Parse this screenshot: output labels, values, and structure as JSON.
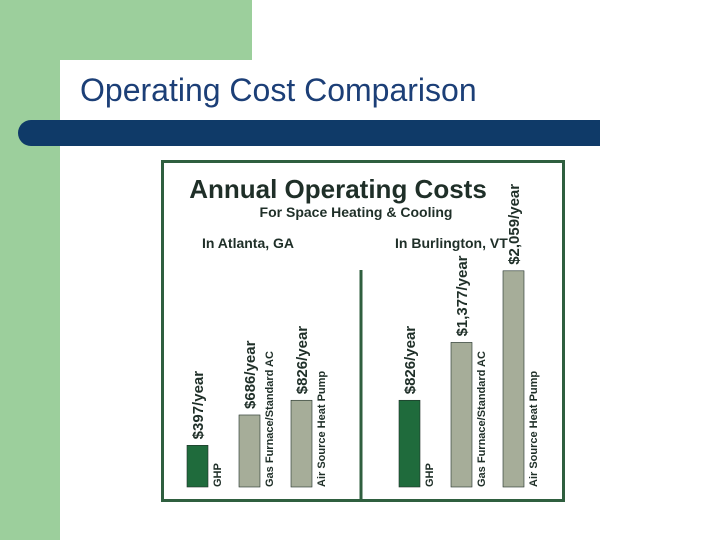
{
  "slide": {
    "title": "Operating Cost Comparison"
  },
  "colors": {
    "band": "#9ccf9c",
    "rule": "#0f3a68",
    "title_text": "#1c3f77",
    "frame": "#2f5f3f",
    "chart_text": "#1f2f28",
    "ghp": "#1f6b3c",
    "other": "#a6ad99"
  },
  "chart_data": {
    "type": "bar",
    "title": "Annual Operating Costs",
    "subtitle": "For Space Heating & Cooling",
    "xlabel": "",
    "ylabel": "",
    "ylim": [
      0,
      2200
    ],
    "categories": [
      "GHP",
      "Gas Furnace/Standard AC",
      "Air Source Heat Pump"
    ],
    "groups": [
      {
        "name": "In Atlanta, GA",
        "values": [
          397,
          686,
          826
        ],
        "value_labels": [
          "$397/year",
          "$686/year",
          "$826/year"
        ]
      },
      {
        "name": "In Burlington, VT",
        "values": [
          826,
          1377,
          2059
        ],
        "value_labels": [
          "$826/year",
          "$1,377/year",
          "$2,059/year"
        ]
      }
    ]
  }
}
